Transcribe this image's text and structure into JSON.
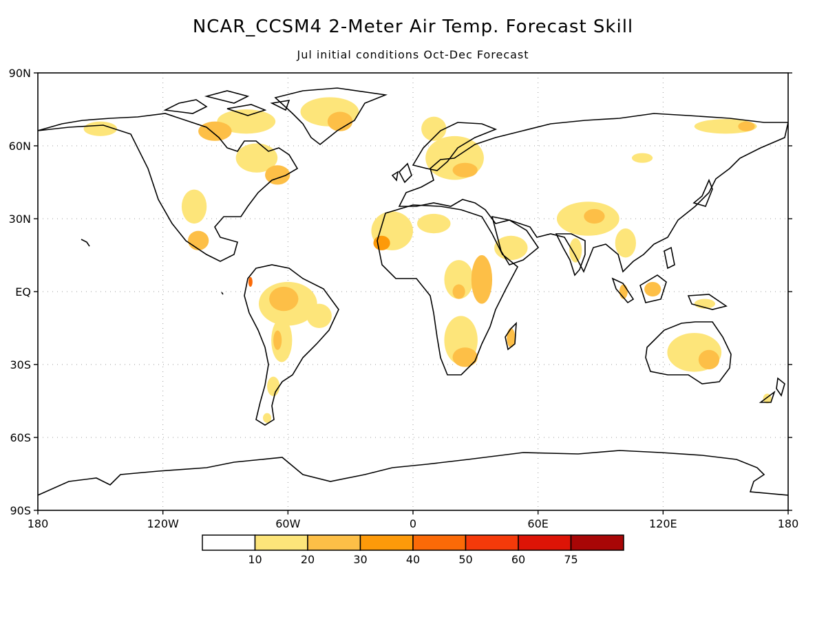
{
  "title": "NCAR_CCSM4 2-Meter Air Temp. Forecast Skill",
  "subtitle": "Jul initial conditions  Oct-Dec Forecast",
  "map": {
    "projection": "equirectangular",
    "lon_range": [
      -180,
      180
    ],
    "lat_range": [
      -90,
      90
    ],
    "gridlines": "dotted",
    "lat_ticks": [
      {
        "value": 90,
        "label": "90N"
      },
      {
        "value": 60,
        "label": "60N"
      },
      {
        "value": 30,
        "label": "30N"
      },
      {
        "value": 0,
        "label": "EQ"
      },
      {
        "value": -30,
        "label": "30S"
      },
      {
        "value": -60,
        "label": "60S"
      },
      {
        "value": -90,
        "label": "90S"
      }
    ],
    "lon_ticks": [
      {
        "value": -180,
        "label": "180"
      },
      {
        "value": -120,
        "label": "120W"
      },
      {
        "value": -60,
        "label": "60W"
      },
      {
        "value": 0,
        "label": "0"
      },
      {
        "value": 60,
        "label": "60E"
      },
      {
        "value": 120,
        "label": "120E"
      },
      {
        "value": 180,
        "label": "180"
      }
    ],
    "skill_regions": [
      {
        "lon": -40,
        "lat": 74,
        "rx": 14,
        "ry": 6,
        "level": 1
      },
      {
        "lon": -35,
        "lat": 70,
        "rx": 6,
        "ry": 4,
        "level": 2
      },
      {
        "lon": -80,
        "lat": 70,
        "rx": 14,
        "ry": 5,
        "level": 1
      },
      {
        "lon": -95,
        "lat": 66,
        "rx": 8,
        "ry": 4,
        "level": 2
      },
      {
        "lon": -150,
        "lat": 67,
        "rx": 8,
        "ry": 3,
        "level": 1
      },
      {
        "lon": -75,
        "lat": 55,
        "rx": 10,
        "ry": 6,
        "level": 1
      },
      {
        "lon": -65,
        "lat": 48,
        "rx": 6,
        "ry": 4,
        "level": 2
      },
      {
        "lon": -105,
        "lat": 35,
        "rx": 6,
        "ry": 7,
        "level": 1
      },
      {
        "lon": -103,
        "lat": 21,
        "rx": 5,
        "ry": 4,
        "level": 2
      },
      {
        "lon": 20,
        "lat": 55,
        "rx": 14,
        "ry": 9,
        "level": 1
      },
      {
        "lon": 25,
        "lat": 50,
        "rx": 6,
        "ry": 3,
        "level": 2
      },
      {
        "lon": 10,
        "lat": 67,
        "rx": 6,
        "ry": 5,
        "level": 1
      },
      {
        "lon": 150,
        "lat": 68,
        "rx": 15,
        "ry": 3,
        "level": 1
      },
      {
        "lon": 160,
        "lat": 68,
        "rx": 4,
        "ry": 2,
        "level": 2
      },
      {
        "lon": 110,
        "lat": 55,
        "rx": 5,
        "ry": 2,
        "level": 1
      },
      {
        "lon": -10,
        "lat": 25,
        "rx": 10,
        "ry": 8,
        "level": 1
      },
      {
        "lon": -15,
        "lat": 20,
        "rx": 4,
        "ry": 3,
        "level": 3
      },
      {
        "lon": 10,
        "lat": 28,
        "rx": 8,
        "ry": 4,
        "level": 1
      },
      {
        "lon": 22,
        "lat": 5,
        "rx": 7,
        "ry": 8,
        "level": 1
      },
      {
        "lon": 22,
        "lat": 0,
        "rx": 3,
        "ry": 3,
        "level": 2
      },
      {
        "lon": 33,
        "lat": 5,
        "rx": 5,
        "ry": 10,
        "level": 2
      },
      {
        "lon": 23,
        "lat": -20,
        "rx": 8,
        "ry": 10,
        "level": 1
      },
      {
        "lon": 25,
        "lat": -27,
        "rx": 6,
        "ry": 4,
        "level": 2
      },
      {
        "lon": 47,
        "lat": 18,
        "rx": 8,
        "ry": 5,
        "level": 1
      },
      {
        "lon": 47,
        "lat": -19,
        "rx": 2,
        "ry": 4,
        "level": 2
      },
      {
        "lon": 84,
        "lat": 30,
        "rx": 15,
        "ry": 7,
        "level": 1
      },
      {
        "lon": 87,
        "lat": 31,
        "rx": 5,
        "ry": 3,
        "level": 2
      },
      {
        "lon": 102,
        "lat": 20,
        "rx": 5,
        "ry": 6,
        "level": 1
      },
      {
        "lon": 78,
        "lat": 17,
        "rx": 3,
        "ry": 5,
        "level": 1
      },
      {
        "lon": 115,
        "lat": 1,
        "rx": 4,
        "ry": 3,
        "level": 2
      },
      {
        "lon": 101,
        "lat": 0,
        "rx": 2,
        "ry": 3,
        "level": 2
      },
      {
        "lon": 140,
        "lat": -5,
        "rx": 5,
        "ry": 2,
        "level": 1
      },
      {
        "lon": 135,
        "lat": -25,
        "rx": 13,
        "ry": 8,
        "level": 1
      },
      {
        "lon": 142,
        "lat": -28,
        "rx": 5,
        "ry": 4,
        "level": 2
      },
      {
        "lon": 170,
        "lat": -44,
        "rx": 2,
        "ry": 2,
        "level": 1
      },
      {
        "lon": -60,
        "lat": -5,
        "rx": 14,
        "ry": 9,
        "level": 1
      },
      {
        "lon": -62,
        "lat": -3,
        "rx": 7,
        "ry": 5,
        "level": 2
      },
      {
        "lon": -45,
        "lat": -10,
        "rx": 6,
        "ry": 5,
        "level": 1
      },
      {
        "lon": -63,
        "lat": -20,
        "rx": 5,
        "ry": 9,
        "level": 1
      },
      {
        "lon": -65,
        "lat": -20,
        "rx": 2,
        "ry": 4,
        "level": 2
      },
      {
        "lon": -78,
        "lat": 4,
        "rx": 1,
        "ry": 2,
        "level": 4
      },
      {
        "lon": -67,
        "lat": -39,
        "rx": 3,
        "ry": 4,
        "level": 1
      },
      {
        "lon": -70,
        "lat": -52,
        "rx": 2,
        "ry": 2,
        "level": 1
      }
    ]
  },
  "colorbar": {
    "segments": [
      {
        "color": "#ffffff"
      },
      {
        "color": "#fde57a"
      },
      {
        "color": "#fdbf47"
      },
      {
        "color": "#fd9a0a"
      },
      {
        "color": "#fb6a07"
      },
      {
        "color": "#f53a0a"
      },
      {
        "color": "#dd1406"
      },
      {
        "color": "#a80606"
      }
    ],
    "labels": [
      "10",
      "20",
      "30",
      "40",
      "50",
      "60",
      "75"
    ]
  }
}
